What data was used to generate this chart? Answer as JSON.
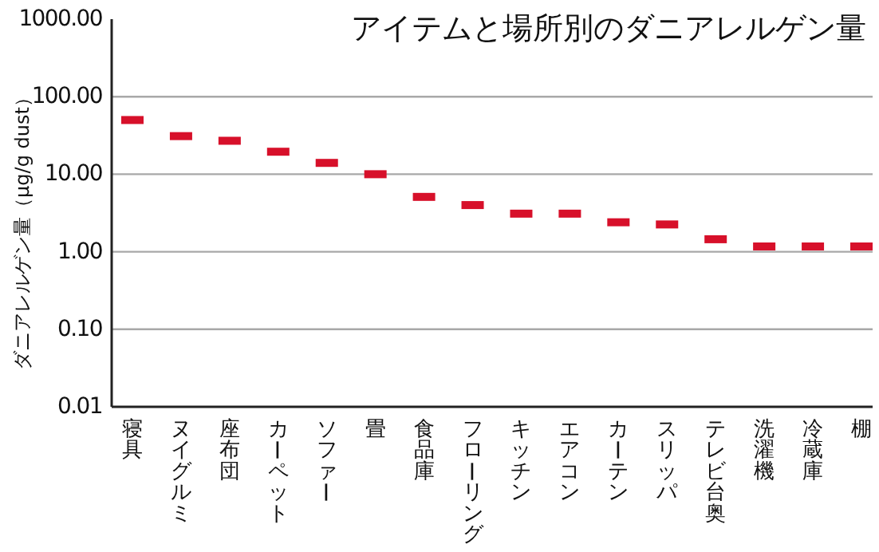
{
  "chart_data": {
    "type": "scatter",
    "title": "アイテムと場所別のダニアレルゲン量",
    "ylabel": "ダニアレルゲン量（μg/g dust）",
    "categories": [
      "寝具",
      "ヌイグルミ",
      "座布団",
      "カーペット",
      "ソファー",
      "畳",
      "食品庫",
      "フローリング",
      "キッチン",
      "エアコン",
      "カーテン",
      "スリッパ",
      "テレビ台奥",
      "洗濯機",
      "冷蔵庫",
      "棚"
    ],
    "series": [
      {
        "color": "#d7102a",
        "values": [
          50,
          31,
          27,
          19.5,
          14,
          10,
          5.1,
          4,
          3.1,
          3.1,
          2.4,
          2.25,
          1.45,
          1.17,
          1.17,
          1.17
        ]
      }
    ],
    "log": "y",
    "ylim": [
      0.01,
      1000
    ],
    "yticks": [
      {
        "value": 0.01,
        "label": "0.01"
      },
      {
        "value": 0.1,
        "label": "0.10"
      },
      {
        "value": 1,
        "label": "1.00"
      },
      {
        "value": 10,
        "label": "10.00"
      },
      {
        "value": 100,
        "label": "100.00"
      },
      {
        "value": 1000,
        "label": "1000.00"
      }
    ],
    "grid": "y"
  }
}
